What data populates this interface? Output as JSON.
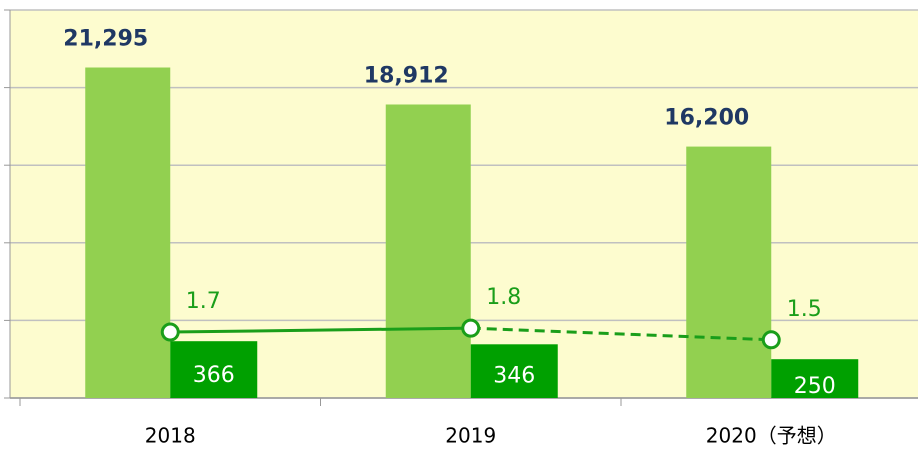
{
  "chart_data": {
    "type": "bar",
    "categories": [
      "2018",
      "2019",
      "2020（予想）"
    ],
    "series": [
      {
        "type": "bar",
        "color": "#92d050",
        "values": [
          21295,
          18912,
          16200
        ],
        "value_labels": [
          "21,295",
          "18,912",
          "16,200"
        ],
        "label_color": "#1f3864"
      },
      {
        "type": "bar",
        "color": "#00a000",
        "axis": "y3",
        "values": [
          366,
          346,
          250
        ],
        "label_color": "#ffffff"
      },
      {
        "type": "line",
        "color": "#1a9e1a",
        "axis": "y2",
        "values": [
          1.7,
          1.8,
          1.5
        ],
        "segment_styles": [
          "solid",
          "dashed"
        ],
        "label_color": "#1a9e1a"
      }
    ],
    "ylim": [
      0,
      25000
    ],
    "yticks": [
      0,
      5000,
      10000,
      15000,
      20000,
      25000
    ],
    "y2lim": [
      0,
      10
    ],
    "y3lim": [
      0,
      2500
    ],
    "grid": true,
    "background": "#fdfccf"
  }
}
